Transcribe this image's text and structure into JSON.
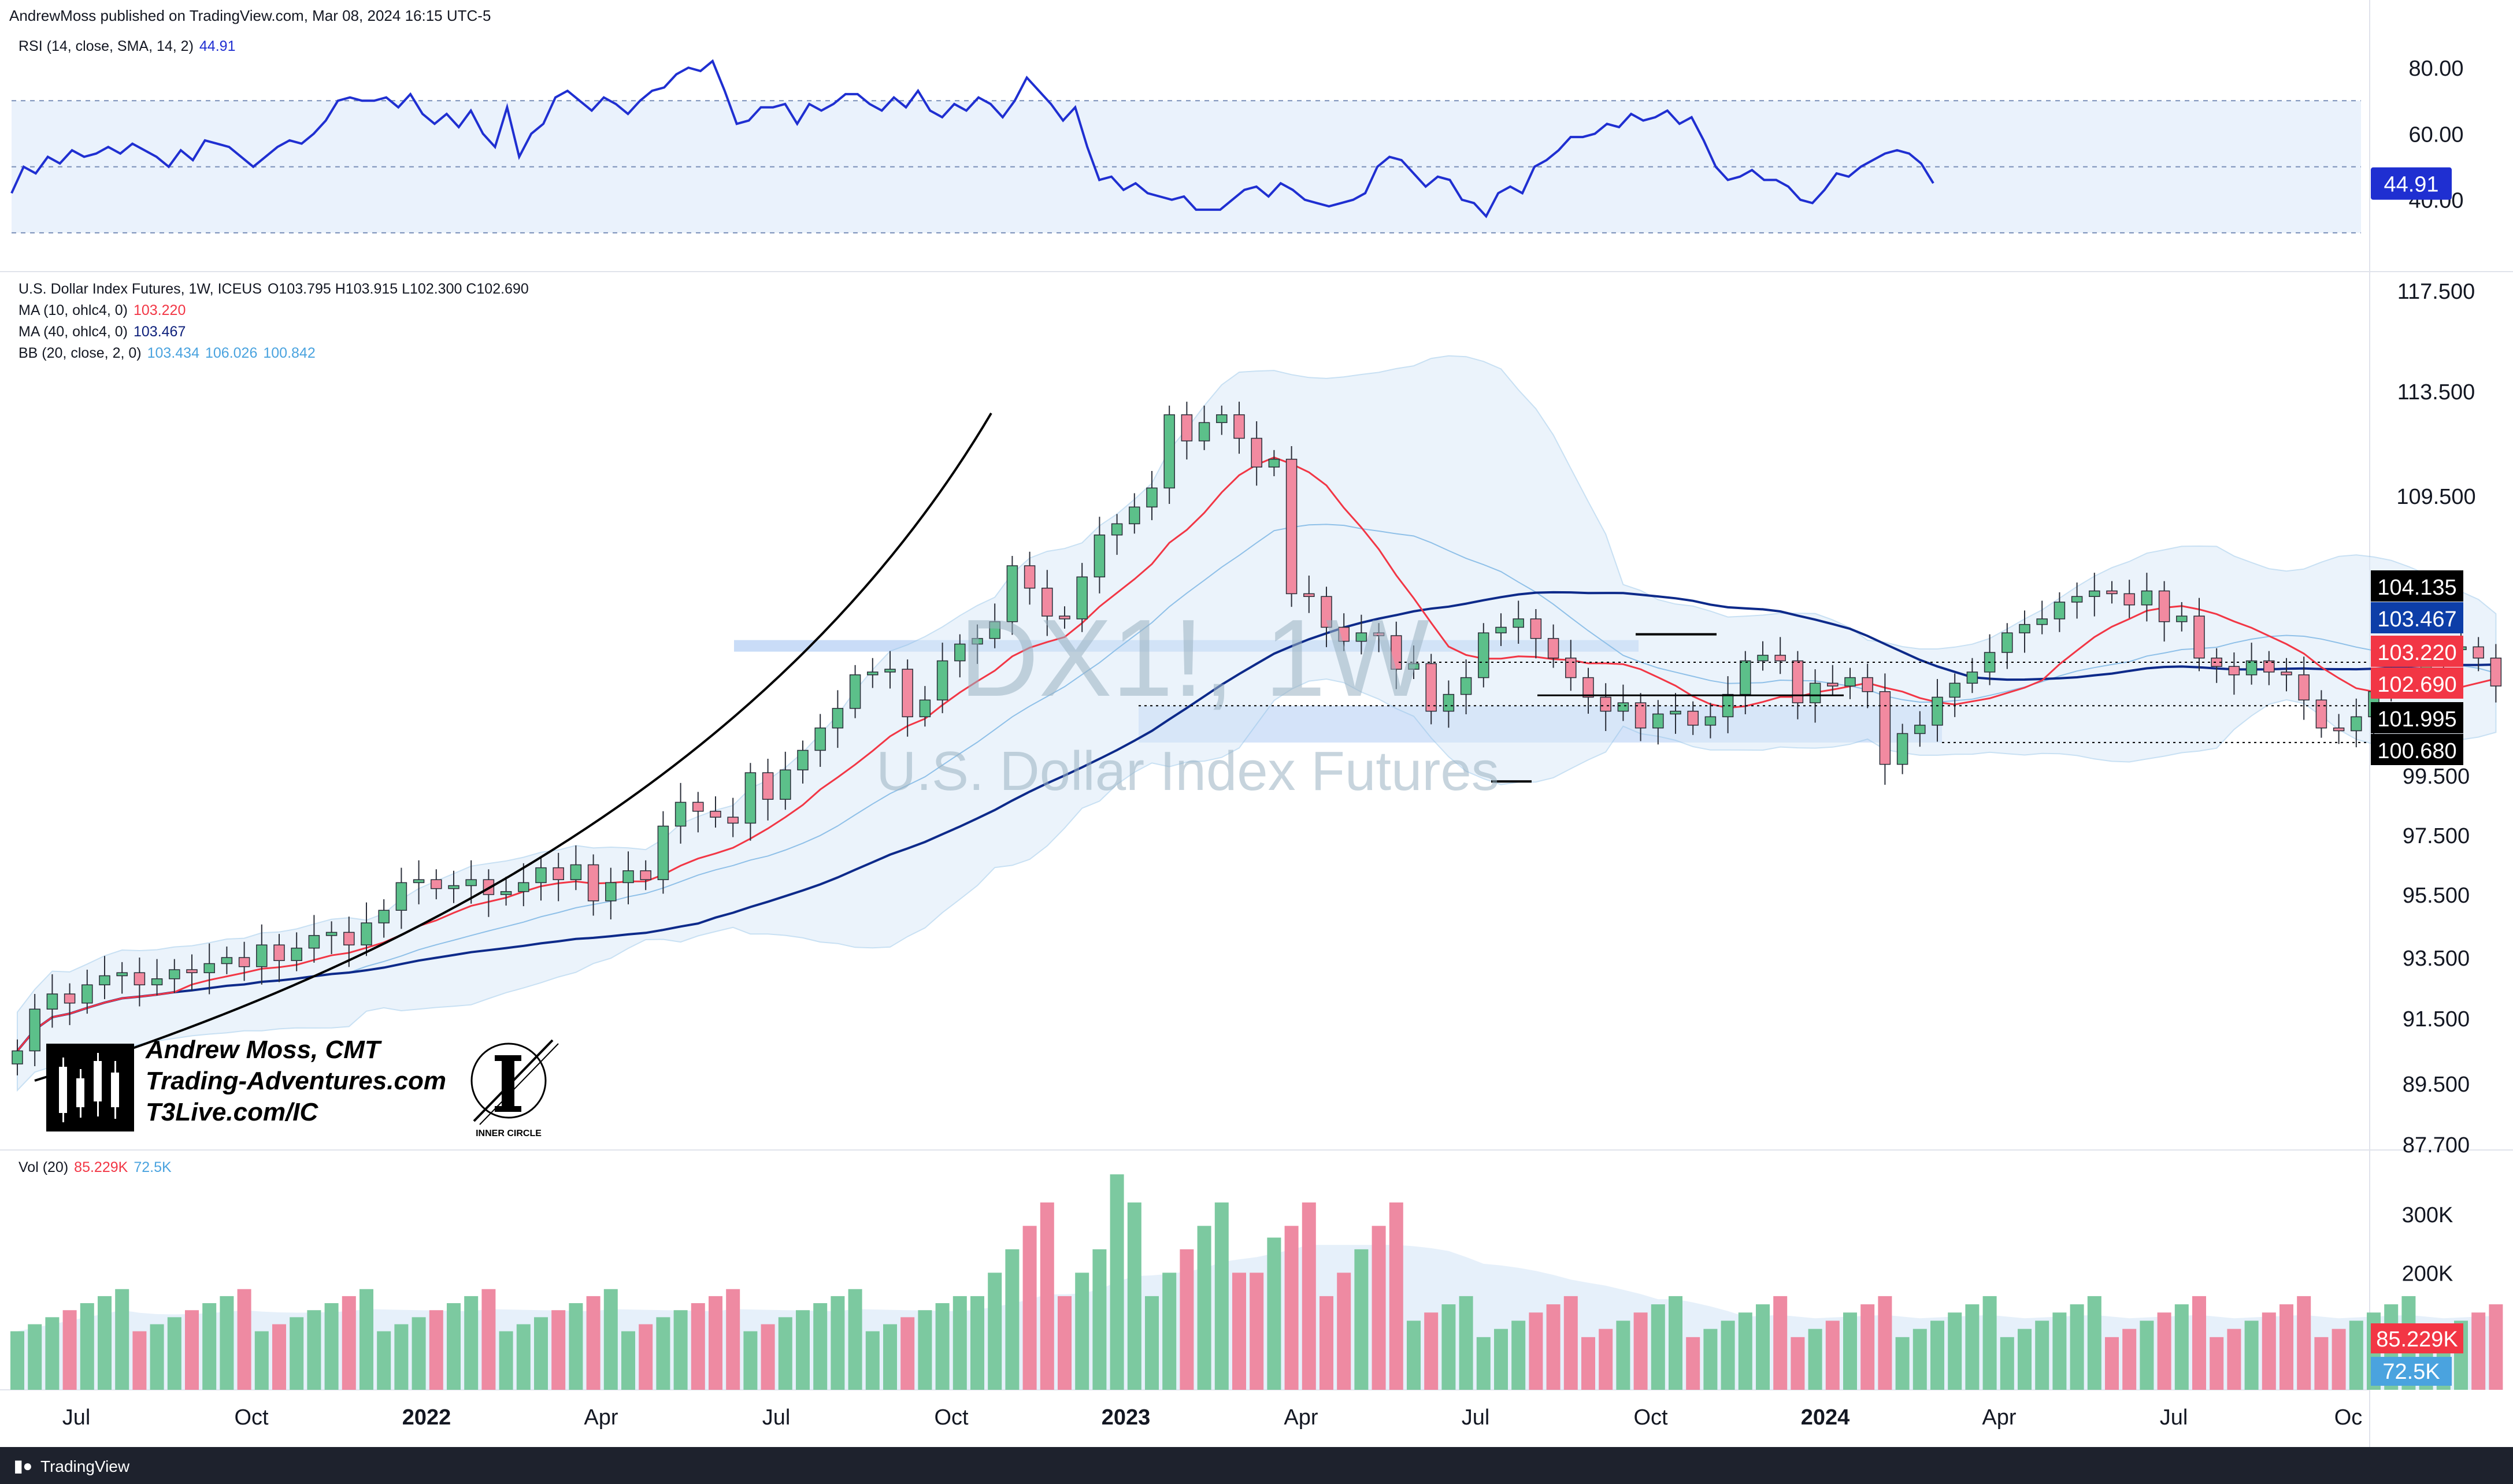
{
  "header": {
    "published": "AndrewMoss published on TradingView.com, Mar 08, 2024 16:15 UTC-5"
  },
  "rsi_legend": {
    "label": "RSI (14, close, SMA, 14, 2)",
    "value": "44.91"
  },
  "main_legend": {
    "symbol_line": "U.S. Dollar Index Futures, 1W, ICEUS",
    "ohlc": "O103.795  H103.915  L102.300  C102.690",
    "ma10_label": "MA (10, ohlc4, 0)",
    "ma10_value": "103.220",
    "ma40_label": "MA (40, ohlc4, 0)",
    "ma40_value": "103.467",
    "bb_label": "BB (20, close, 2, 0)",
    "bb_basis": "103.434",
    "bb_upper": "106.026",
    "bb_lower": "100.842"
  },
  "vol_legend": {
    "label": "Vol (20)",
    "value": "85.229K",
    "ma": "72.5K"
  },
  "watermark": {
    "symbol": "DX1!, 1W",
    "description": "U.S. Dollar Index Futures"
  },
  "signature": {
    "line1": "Andrew Moss, CMT",
    "line2": "Trading-Adventures.com",
    "line3": "T3Live.com/IC",
    "logo_caption": "INNER CIRCLE"
  },
  "footer": {
    "brand": "TradingView"
  },
  "chart_data": [
    {
      "type": "candlestick",
      "name": "U.S. Dollar Index Futures, 1W, ICEUS",
      "ylim": [
        87.7,
        117.5
      ],
      "price_ticks": [
        "117.500",
        "113.500",
        "109.500",
        "104.135",
        "103.467",
        "103.220",
        "102.690",
        "101.995",
        "100.680",
        "99.500",
        "97.500",
        "95.500",
        "93.500",
        "91.500",
        "89.500",
        "87.700"
      ],
      "x_labels": [
        "Jul",
        "Oct",
        "2022",
        "Apr",
        "Jul",
        "Oct",
        "2023",
        "Apr",
        "Jul",
        "Oct",
        "2024",
        "Apr",
        "Jul",
        "Oc"
      ],
      "price_badges": [
        {
          "value": "104.135",
          "color": "#000000"
        },
        {
          "value": "103.467",
          "color": "#0d3ea8"
        },
        {
          "value": "103.220",
          "color": "#f23645"
        },
        {
          "value": "102.690",
          "color": "#f23645"
        },
        {
          "value": "101.995",
          "color": "#000000"
        },
        {
          "value": "100.680",
          "color": "#000000"
        }
      ],
      "weekly_close": [
        90.5,
        91.8,
        92.3,
        92.0,
        92.6,
        92.9,
        93.0,
        92.6,
        92.8,
        93.1,
        93.0,
        93.3,
        93.5,
        93.2,
        93.9,
        93.4,
        93.8,
        94.2,
        94.3,
        93.9,
        94.6,
        95.0,
        95.9,
        96.0,
        95.7,
        95.8,
        96.0,
        95.5,
        95.6,
        95.9,
        96.4,
        96.0,
        96.5,
        95.3,
        95.9,
        96.3,
        96.0,
        97.8,
        98.6,
        98.3,
        98.1,
        97.9,
        99.6,
        98.7,
        99.7,
        100.4,
        101.2,
        101.9,
        103.1,
        103.2,
        103.3,
        101.6,
        102.2,
        103.6,
        104.2,
        104.4,
        105.0,
        107.0,
        106.2,
        105.2,
        105.1,
        106.6,
        108.1,
        108.5,
        109.1,
        109.8,
        112.6,
        111.6,
        112.3,
        112.6,
        111.7,
        110.6,
        110.9,
        106.0,
        105.9,
        104.8,
        104.3,
        104.6,
        104.5,
        103.3,
        103.5,
        101.8,
        102.4,
        103.0,
        104.6,
        104.8,
        105.1,
        104.4,
        103.7,
        103.0,
        102.3,
        101.8,
        102.1,
        101.2,
        101.7,
        101.8,
        101.3,
        101.6,
        102.4,
        103.6,
        103.8,
        103.6,
        102.1,
        102.8,
        102.7,
        103.0,
        102.5,
        99.9,
        101.0,
        101.3,
        102.3,
        102.8,
        103.2,
        103.9,
        104.6,
        104.9,
        105.1,
        105.7,
        105.9,
        106.1,
        106.0,
        105.6,
        106.1,
        105.0,
        105.2,
        103.7,
        103.4,
        103.1,
        103.6,
        103.2,
        103.1,
        102.2,
        101.2,
        101.1,
        101.6,
        102.5,
        102.9,
        103.3,
        103.7,
        104.0,
        104.1,
        103.7,
        102.7
      ]
    },
    {
      "type": "line",
      "name": "RSI (14, close, SMA, 14, 2)",
      "ylim": [
        20,
        90
      ],
      "y_ticks": [
        "80.00",
        "60.00",
        "40.00"
      ],
      "bands": [
        70,
        50,
        30
      ],
      "last_value": "44.91",
      "values": [
        42,
        50,
        48,
        53,
        51,
        55,
        53,
        54,
        56,
        54,
        57,
        55,
        53,
        50,
        55,
        52,
        58,
        57,
        56,
        53,
        50,
        53,
        56,
        58,
        57,
        60,
        64,
        70,
        71,
        70,
        70,
        71,
        68,
        72,
        66,
        63,
        66,
        62,
        67,
        60,
        56,
        68,
        53,
        60,
        63,
        71,
        73,
        70,
        67,
        71,
        69,
        66,
        70,
        73,
        74,
        78,
        80,
        79,
        82,
        73,
        63,
        64,
        68,
        68,
        69,
        63,
        69,
        67,
        69,
        72,
        72,
        69,
        67,
        71,
        68,
        73,
        67,
        65,
        69,
        67,
        71,
        69,
        65,
        70,
        77,
        73,
        69,
        64,
        68,
        56,
        46,
        47,
        43,
        45,
        42,
        41,
        40,
        41,
        37,
        37,
        37,
        40,
        43,
        44,
        41,
        45,
        43,
        40,
        39,
        38,
        39,
        40,
        42,
        50,
        53,
        52,
        48,
        44,
        47,
        46,
        40,
        39,
        35,
        42,
        44,
        42,
        50,
        52,
        55,
        59,
        59,
        60,
        63,
        62,
        66,
        64,
        65,
        67,
        63,
        65,
        58,
        50,
        46,
        47,
        49,
        46,
        46,
        44,
        40,
        39,
        43,
        48,
        47,
        50,
        52,
        54,
        55,
        54,
        51,
        45
      ]
    },
    {
      "type": "bar",
      "name": "Vol (20)",
      "y_ticks": [
        "300K",
        "200K"
      ],
      "ylim": [
        0,
        380
      ],
      "unit": "K",
      "last_value": "85.229K",
      "ma_value": "72.5K"
    }
  ],
  "colors": {
    "up": "#26a69a",
    "up_fill": "#5cc08a",
    "down": "#ef5350",
    "down_fill": "#f28aa0",
    "ma10": "#f23645",
    "ma40": "#0d2a8a",
    "bb": "#4aa3df",
    "rsi": "#1f2fd1"
  }
}
